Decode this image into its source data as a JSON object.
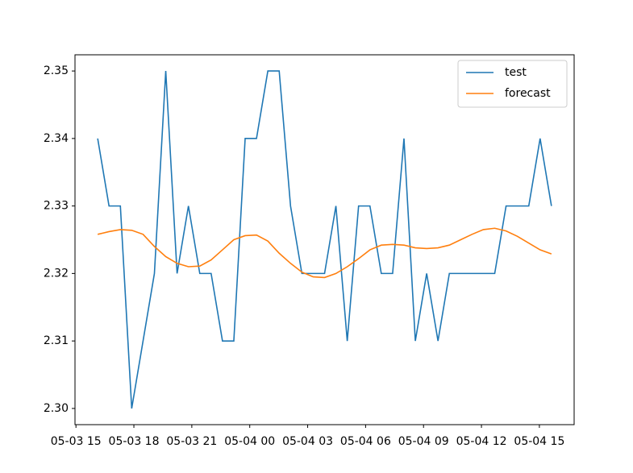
{
  "chart_data": {
    "type": "line",
    "x": [
      1.125,
      1.7125,
      2.3,
      2.8875,
      3.475,
      4.0625,
      4.65,
      5.2375,
      5.825,
      6.4125,
      7.0,
      7.5875,
      8.175,
      8.7625,
      9.35,
      9.9375,
      10.525,
      11.1125,
      11.7,
      12.2875,
      12.875,
      13.4625,
      14.05,
      14.6375,
      15.225,
      15.8125,
      16.4,
      16.9875,
      17.575,
      18.1625,
      18.75,
      19.3375,
      19.925,
      20.5125,
      21.1,
      21.6875,
      22.275,
      22.8625,
      23.45,
      24.0375,
      24.625
    ],
    "series": [
      {
        "name": "test",
        "color": "#1f77b4",
        "values": [
          2.34,
          2.33,
          2.33,
          2.3,
          2.31,
          2.32,
          2.35,
          2.32,
          2.33,
          2.32,
          2.32,
          2.31,
          2.31,
          2.34,
          2.34,
          2.35,
          2.35,
          2.33,
          2.32,
          2.32,
          2.32,
          2.33,
          2.31,
          2.33,
          2.33,
          2.32,
          2.32,
          2.34,
          2.31,
          2.32,
          2.31,
          2.32,
          2.32,
          2.32,
          2.32,
          2.32,
          2.33,
          2.33,
          2.33,
          2.34,
          2.33
        ]
      },
      {
        "name": "forecast",
        "color": "#ff7f0e",
        "values": [
          2.3258,
          2.3262,
          2.3265,
          2.3264,
          2.3258,
          2.324,
          2.3225,
          2.3215,
          2.321,
          2.3211,
          2.322,
          2.3235,
          2.325,
          2.3256,
          2.3257,
          2.3248,
          2.323,
          2.3215,
          2.3202,
          2.3195,
          2.3194,
          2.32,
          2.321,
          2.3222,
          2.3235,
          2.3242,
          2.3243,
          2.3242,
          2.3238,
          2.3237,
          2.3238,
          2.3242,
          2.325,
          2.3258,
          2.3265,
          2.3267,
          2.3263,
          2.3255,
          2.3245,
          2.3235,
          2.3229
        ]
      }
    ],
    "xlim": [
      -0.05,
      25.8
    ],
    "xticks": [
      {
        "value": 0,
        "label": "05-03 15"
      },
      {
        "value": 3,
        "label": "05-03 18"
      },
      {
        "value": 6,
        "label": "05-03 21"
      },
      {
        "value": 9,
        "label": "05-04 00"
      },
      {
        "value": 12,
        "label": "05-04 03"
      },
      {
        "value": 15,
        "label": "05-04 06"
      },
      {
        "value": 18,
        "label": "05-04 09"
      },
      {
        "value": 21,
        "label": "05-04 12"
      },
      {
        "value": 24,
        "label": "05-04 15"
      }
    ],
    "ylim": [
      2.2976,
      2.3524
    ],
    "yticks": [
      {
        "value": 2.3,
        "label": "2.30"
      },
      2.31,
      2.32,
      2.33,
      2.34,
      2.35
    ],
    "legend": "upper right"
  }
}
